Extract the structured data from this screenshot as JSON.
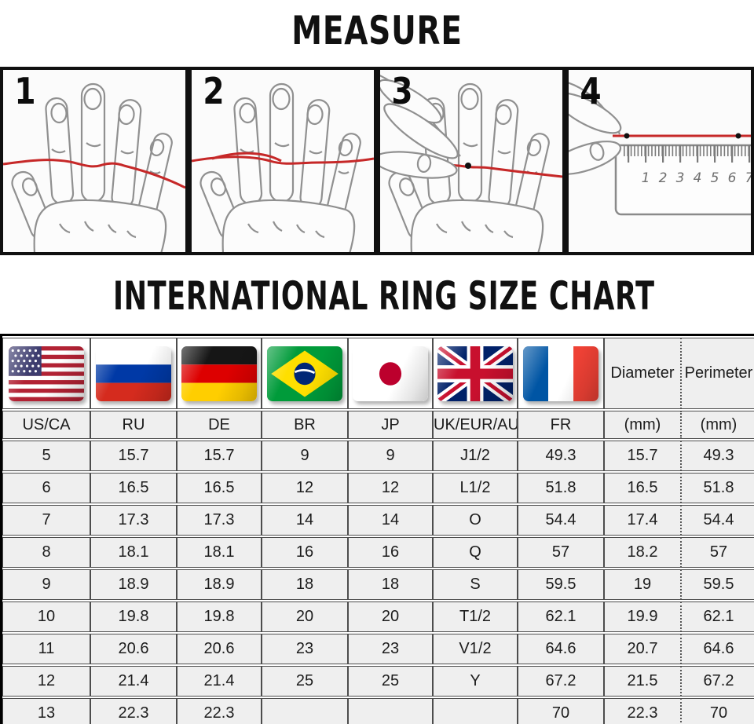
{
  "measure": {
    "title": "MEASURE",
    "step_numbers": [
      "1",
      "2",
      "3",
      "4"
    ],
    "ruler_numbers": [
      "1",
      "2",
      "3",
      "4",
      "5",
      "6",
      "7"
    ],
    "string_color": "#c62828"
  },
  "chart_data": {
    "type": "table",
    "title": "INTERNATIONAL RING SIZE CHART",
    "header": {
      "flags": [
        {
          "country": "United States / Canada",
          "label": "US/CA"
        },
        {
          "country": "Russia",
          "label": "RU"
        },
        {
          "country": "Germany",
          "label": "DE"
        },
        {
          "country": "Brazil",
          "label": "BR"
        },
        {
          "country": "Japan",
          "label": "JP"
        },
        {
          "country": "United Kingdom / Europe / Australia",
          "label": "UK/EUR/AU"
        },
        {
          "country": "France",
          "label": "FR"
        }
      ],
      "diameter": {
        "title": "Diameter",
        "unit": "(mm)"
      },
      "perimeter": {
        "title": "Perimeter",
        "unit": "(mm)"
      }
    },
    "rows": [
      [
        "5",
        "15.7",
        "15.7",
        "9",
        "9",
        "J1/2",
        "49.3",
        "15.7",
        "49.3"
      ],
      [
        "6",
        "16.5",
        "16.5",
        "12",
        "12",
        "L1/2",
        "51.8",
        "16.5",
        "51.8"
      ],
      [
        "7",
        "17.3",
        "17.3",
        "14",
        "14",
        "O",
        "54.4",
        "17.4",
        "54.4"
      ],
      [
        "8",
        "18.1",
        "18.1",
        "16",
        "16",
        "Q",
        "57",
        "18.2",
        "57"
      ],
      [
        "9",
        "18.9",
        "18.9",
        "18",
        "18",
        "S",
        "59.5",
        "19",
        "59.5"
      ],
      [
        "10",
        "19.8",
        "19.8",
        "20",
        "20",
        "T1/2",
        "62.1",
        "19.9",
        "62.1"
      ],
      [
        "11",
        "20.6",
        "20.6",
        "23",
        "23",
        "V1/2",
        "64.6",
        "20.7",
        "64.6"
      ],
      [
        "12",
        "21.4",
        "21.4",
        "25",
        "25",
        "Y",
        "67.2",
        "21.5",
        "67.2"
      ],
      [
        "13",
        "22.3",
        "22.3",
        "",
        "",
        "",
        "70",
        "22.3",
        "70"
      ]
    ]
  },
  "colors": {
    "string_red": "#c62828",
    "cell_background": "#efefef",
    "grid_line": "#4d4d4d",
    "outer_border": "#000000"
  }
}
